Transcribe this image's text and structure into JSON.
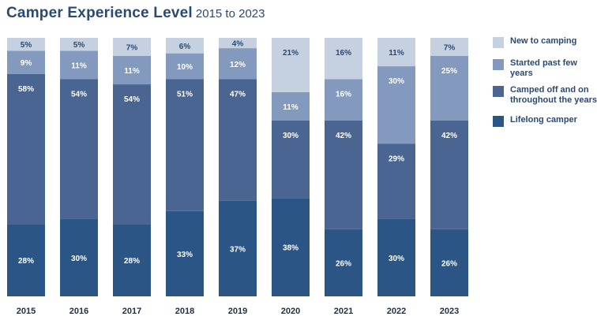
{
  "title": "Camper Experience Level",
  "subtitle": "2015 to 2023",
  "colors": {
    "new_to_camping": "#c5d1e1",
    "started_past_few_years": "#8399bd",
    "camped_off_and_on": "#4a6591",
    "lifelong_camper": "#2a5585",
    "text_dark": "#2b4a72"
  },
  "legend": [
    {
      "key": "new_to_camping",
      "label": "New to camping"
    },
    {
      "key": "started_past_few_years",
      "label": "Started past few years"
    },
    {
      "key": "camped_off_and_on",
      "label": "Camped off and on throughout the years"
    },
    {
      "key": "lifelong_camper",
      "label": "Lifelong camper"
    }
  ],
  "chart_data": {
    "type": "bar",
    "stacked": true,
    "legend_position": "right",
    "grid": false,
    "ylim": [
      0,
      100
    ],
    "categories": [
      "2015",
      "2016",
      "2017",
      "2018",
      "2019",
      "2020",
      "2021",
      "2022",
      "2023"
    ],
    "series": [
      {
        "name": "Lifelong camper",
        "key": "lifelong_camper",
        "values": [
          28,
          30,
          28,
          33,
          37,
          38,
          26,
          30,
          26
        ],
        "labels": [
          "28%",
          "30%",
          "28%",
          "33%",
          "37%",
          "38%",
          "26%",
          "30%",
          "26%"
        ]
      },
      {
        "name": "Camped off and on throughout the years",
        "key": "camped_off_and_on",
        "values": [
          58,
          54,
          54,
          51,
          47,
          30,
          42,
          29,
          42
        ],
        "labels": [
          "58%",
          "54%",
          "54%",
          "51%",
          "47%",
          "30%",
          "42%",
          "29%",
          "42%"
        ]
      },
      {
        "name": "Started past few years",
        "key": "started_past_few_years",
        "values": [
          9,
          11,
          11,
          10,
          12,
          11,
          16,
          30,
          25
        ],
        "labels": [
          "9%",
          "11%",
          "11%",
          "10%",
          "12%",
          "11%",
          "16%",
          "30%",
          "25%"
        ]
      },
      {
        "name": "New to camping",
        "key": "new_to_camping",
        "values": [
          5,
          5,
          7,
          6,
          4,
          21,
          16,
          11,
          7
        ],
        "labels": [
          "5%",
          "5%",
          "7%",
          "6%",
          "4%",
          "21%",
          "16%",
          "11%",
          "7%"
        ]
      }
    ]
  }
}
